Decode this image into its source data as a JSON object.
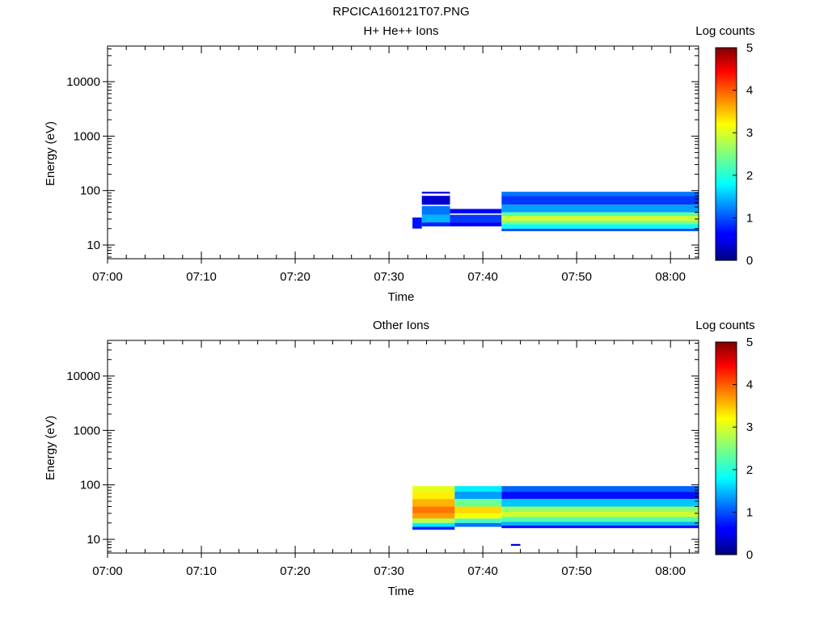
{
  "figure_title": "RPCICA160121T07.PNG",
  "chart_data": [
    {
      "type": "heatmap",
      "title": "H+ He++ Ions",
      "xlabel": "Time",
      "ylabel": "Energy (eV)",
      "colorbar_label": "Log counts",
      "x_range": [
        "07:00",
        "08:03"
      ],
      "x_ticks": [
        "07:00",
        "07:10",
        "07:20",
        "07:30",
        "07:40",
        "07:50",
        "08:00"
      ],
      "y_scale": "log",
      "y_range": [
        5.6,
        45000
      ],
      "y_ticks": [
        10,
        100,
        1000,
        10000
      ],
      "y_tick_labels": [
        "10",
        "100",
        "1000",
        "10000"
      ],
      "color_range": [
        0,
        5
      ],
      "colorbar_ticks": [
        "0",
        "1",
        "2",
        "3",
        "4",
        "5"
      ],
      "colormap": "jet",
      "cells": [
        {
          "t": [
            "07:32:30",
            "07:33:30"
          ],
          "e": [
            20,
            32
          ],
          "v": 0.7
        },
        {
          "t": [
            "07:33:30",
            "07:36:30"
          ],
          "e": [
            88,
            95
          ],
          "v": 0.5
        },
        {
          "t": [
            "07:33:30",
            "07:36:30"
          ],
          "e": [
            55,
            80
          ],
          "v": 0.4
        },
        {
          "t": [
            "07:33:30",
            "07:36:30"
          ],
          "e": [
            36,
            52
          ],
          "v": 1.2
        },
        {
          "t": [
            "07:33:30",
            "07:36:30"
          ],
          "e": [
            26,
            36
          ],
          "v": 1.5
        },
        {
          "t": [
            "07:33:30",
            "07:36:30"
          ],
          "e": [
            22,
            26
          ],
          "v": 0.8
        },
        {
          "t": [
            "07:36:30",
            "07:42:00"
          ],
          "e": [
            38,
            46
          ],
          "v": 0.6
        },
        {
          "t": [
            "07:36:30",
            "07:42:00"
          ],
          "e": [
            26,
            36
          ],
          "v": 0.9
        },
        {
          "t": [
            "07:36:30",
            "07:42:00"
          ],
          "e": [
            22,
            26
          ],
          "v": 0.6
        },
        {
          "t": [
            "07:42:00",
            "08:03:00"
          ],
          "e": [
            80,
            95
          ],
          "v": 1.2
        },
        {
          "t": [
            "07:42:00",
            "08:03:00"
          ],
          "e": [
            55,
            80
          ],
          "v": 0.9
        },
        {
          "t": [
            "07:42:00",
            "08:03:00"
          ],
          "e": [
            40,
            55
          ],
          "v": 1.4
        },
        {
          "t": [
            "07:42:00",
            "08:03:00"
          ],
          "e": [
            34,
            40
          ],
          "v": 2.3
        },
        {
          "t": [
            "07:42:00",
            "08:03:00"
          ],
          "e": [
            28,
            34
          ],
          "v": 2.9
        },
        {
          "t": [
            "07:42:00",
            "08:03:00"
          ],
          "e": [
            24,
            28
          ],
          "v": 2.5
        },
        {
          "t": [
            "07:42:00",
            "08:03:00"
          ],
          "e": [
            20,
            24
          ],
          "v": 1.9
        },
        {
          "t": [
            "07:42:00",
            "08:03:00"
          ],
          "e": [
            18,
            20
          ],
          "v": 1.0
        }
      ]
    },
    {
      "type": "heatmap",
      "title": "Other Ions",
      "xlabel": "Time",
      "ylabel": "Energy (eV)",
      "colorbar_label": "Log counts",
      "x_range": [
        "07:00",
        "08:03"
      ],
      "x_ticks": [
        "07:00",
        "07:10",
        "07:20",
        "07:30",
        "07:40",
        "07:50",
        "08:00"
      ],
      "y_scale": "log",
      "y_range": [
        5.6,
        45000
      ],
      "y_ticks": [
        10,
        100,
        1000,
        10000
      ],
      "y_tick_labels": [
        "10",
        "100",
        "1000",
        "10000"
      ],
      "color_range": [
        0,
        5
      ],
      "colorbar_ticks": [
        "0",
        "1",
        "2",
        "3",
        "4",
        "5"
      ],
      "colormap": "jet",
      "cells": [
        {
          "t": [
            "07:32:30",
            "07:37:00"
          ],
          "e": [
            75,
            95
          ],
          "v": 3.0
        },
        {
          "t": [
            "07:32:30",
            "07:37:00"
          ],
          "e": [
            55,
            75
          ],
          "v": 3.2
        },
        {
          "t": [
            "07:32:30",
            "07:37:00"
          ],
          "e": [
            40,
            55
          ],
          "v": 3.5
        },
        {
          "t": [
            "07:32:30",
            "07:37:00"
          ],
          "e": [
            30,
            40
          ],
          "v": 3.8
        },
        {
          "t": [
            "07:32:30",
            "07:37:00"
          ],
          "e": [
            24,
            30
          ],
          "v": 3.6
        },
        {
          "t": [
            "07:32:30",
            "07:37:00"
          ],
          "e": [
            20,
            24
          ],
          "v": 2.8
        },
        {
          "t": [
            "07:32:30",
            "07:37:00"
          ],
          "e": [
            17,
            20
          ],
          "v": 1.8
        },
        {
          "t": [
            "07:32:30",
            "07:37:00"
          ],
          "e": [
            15,
            17
          ],
          "v": 0.8
        },
        {
          "t": [
            "07:37:00",
            "07:42:00"
          ],
          "e": [
            75,
            95
          ],
          "v": 1.8
        },
        {
          "t": [
            "07:37:00",
            "07:42:00"
          ],
          "e": [
            55,
            75
          ],
          "v": 1.4
        },
        {
          "t": [
            "07:37:00",
            "07:42:00"
          ],
          "e": [
            40,
            55
          ],
          "v": 2.4
        },
        {
          "t": [
            "07:37:00",
            "07:42:00"
          ],
          "e": [
            30,
            40
          ],
          "v": 3.3
        },
        {
          "t": [
            "07:37:00",
            "07:42:00"
          ],
          "e": [
            24,
            30
          ],
          "v": 3.1
        },
        {
          "t": [
            "07:37:00",
            "07:42:00"
          ],
          "e": [
            20,
            24
          ],
          "v": 2.2
        },
        {
          "t": [
            "07:37:00",
            "07:42:00"
          ],
          "e": [
            17,
            20
          ],
          "v": 1.2
        },
        {
          "t": [
            "07:42:00",
            "08:03:00"
          ],
          "e": [
            75,
            95
          ],
          "v": 1.1
        },
        {
          "t": [
            "07:42:00",
            "08:03:00"
          ],
          "e": [
            55,
            75
          ],
          "v": 0.7
        },
        {
          "t": [
            "07:42:00",
            "08:03:00"
          ],
          "e": [
            40,
            55
          ],
          "v": 1.6
        },
        {
          "t": [
            "07:42:00",
            "08:03:00"
          ],
          "e": [
            32,
            40
          ],
          "v": 2.6
        },
        {
          "t": [
            "07:42:00",
            "08:03:00"
          ],
          "e": [
            26,
            32
          ],
          "v": 2.9
        },
        {
          "t": [
            "07:42:00",
            "08:03:00"
          ],
          "e": [
            21,
            26
          ],
          "v": 2.3
        },
        {
          "t": [
            "07:42:00",
            "08:03:00"
          ],
          "e": [
            18,
            21
          ],
          "v": 1.5
        },
        {
          "t": [
            "07:42:00",
            "08:03:00"
          ],
          "e": [
            16,
            18
          ],
          "v": 0.7
        },
        {
          "t": [
            "07:43:00",
            "07:44:00"
          ],
          "e": [
            7.6,
            8.2
          ],
          "v": 0.4
        }
      ]
    }
  ]
}
